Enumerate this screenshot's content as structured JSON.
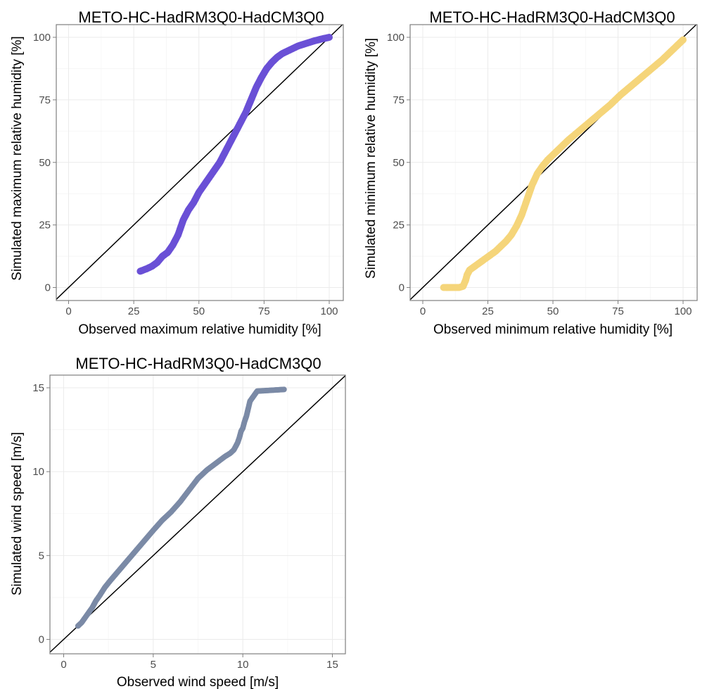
{
  "chart_data": [
    {
      "type": "scatter",
      "title": "METO-HC-HadRM3Q0-HadCM3Q0",
      "xlabel": "Observed maximum relative humidity [%]",
      "ylabel": "Simulated maximum relative humidity [%]",
      "xlim": [
        0,
        100
      ],
      "ylim": [
        0,
        100
      ],
      "xticks": [
        0,
        25,
        50,
        75,
        100
      ],
      "yticks": [
        0,
        25,
        50,
        75,
        100
      ],
      "grid": true,
      "reference_line": "y = x",
      "color": "#6a50d6",
      "series": [
        {
          "x": [
            27.5,
            30,
            32,
            34,
            36,
            38,
            40,
            42,
            44,
            46,
            48,
            50,
            52,
            54,
            56,
            58,
            60,
            62,
            64,
            66,
            68,
            70,
            72,
            74,
            76,
            78,
            80,
            82,
            85,
            88,
            91,
            94,
            97,
            100
          ],
          "y": [
            6.5,
            7.5,
            8.5,
            10,
            12.5,
            14,
            17,
            21,
            27,
            31,
            34,
            38,
            41,
            44,
            47,
            50,
            54,
            58,
            62,
            66,
            70,
            75,
            80,
            84,
            87.5,
            90,
            92,
            93.5,
            95,
            96.5,
            97.5,
            98.5,
            99.3,
            100
          ]
        }
      ]
    },
    {
      "type": "scatter",
      "title": "METO-HC-HadRM3Q0-HadCM3Q0",
      "xlabel": "Observed minimum relative humidity [%]",
      "ylabel": "Simulated minimum relative humidity [%]",
      "xlim": [
        0,
        100
      ],
      "ylim": [
        0,
        100
      ],
      "xticks": [
        0,
        25,
        50,
        75,
        100
      ],
      "yticks": [
        0,
        25,
        50,
        75,
        100
      ],
      "grid": true,
      "reference_line": "y = x",
      "color": "#f5d57a",
      "series": [
        {
          "x": [
            8,
            10,
            12,
            14,
            15.5,
            16.5,
            17,
            18,
            20,
            22,
            24,
            26,
            28,
            30,
            32,
            34,
            36,
            38,
            40,
            42,
            44,
            46,
            48,
            50,
            53,
            56,
            60,
            64,
            68,
            72,
            76,
            80,
            84,
            88,
            92,
            96,
            100
          ],
          "y": [
            0,
            0,
            0,
            0,
            0.5,
            3,
            5,
            7,
            8.5,
            10,
            11.5,
            13,
            14.5,
            16.5,
            18.5,
            21,
            24.5,
            29,
            35,
            41,
            45.5,
            48.5,
            51,
            53,
            56,
            59,
            62.5,
            66,
            69.5,
            73,
            77,
            80.5,
            84,
            87.5,
            91,
            95,
            99
          ]
        }
      ]
    },
    {
      "type": "scatter",
      "title": "METO-HC-HadRM3Q0-HadCM3Q0",
      "xlabel": "Observed wind speed [m/s]",
      "ylabel": "Simulated wind speed [m/s]",
      "xlim": [
        0,
        15
      ],
      "ylim": [
        0,
        15
      ],
      "xticks": [
        0,
        5,
        10,
        15
      ],
      "yticks": [
        0,
        5,
        10,
        15
      ],
      "grid": true,
      "reference_line": "y = x",
      "color": "#7b8aa6",
      "series": [
        {
          "x": [
            0.8,
            1.0,
            1.2,
            1.4,
            1.6,
            1.8,
            2.0,
            2.3,
            2.6,
            3.0,
            3.4,
            3.8,
            4.2,
            4.6,
            5.0,
            5.5,
            6.0,
            6.5,
            7.0,
            7.5,
            8.0,
            8.5,
            9.0,
            9.3,
            9.5,
            9.7,
            9.8,
            9.9,
            10.0,
            10.1,
            10.2,
            10.4,
            10.8,
            12.3
          ],
          "y": [
            0.8,
            1.0,
            1.3,
            1.6,
            1.9,
            2.3,
            2.6,
            3.1,
            3.5,
            4.0,
            4.5,
            5.0,
            5.5,
            6.0,
            6.5,
            7.1,
            7.6,
            8.2,
            8.9,
            9.6,
            10.1,
            10.5,
            10.9,
            11.1,
            11.3,
            11.7,
            12.0,
            12.4,
            12.6,
            13.0,
            13.3,
            14.2,
            14.8,
            14.9
          ]
        }
      ]
    }
  ]
}
